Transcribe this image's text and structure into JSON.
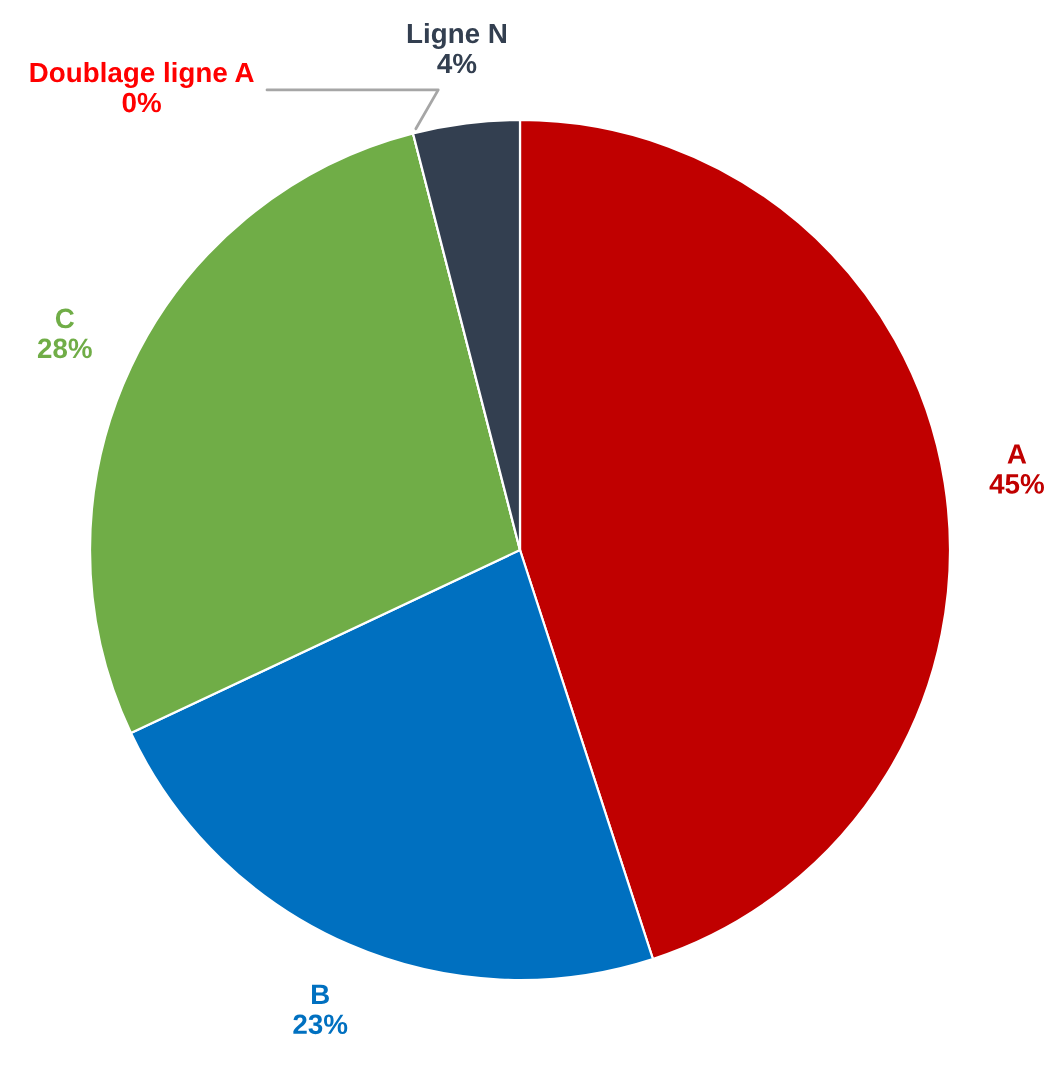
{
  "chart_data": {
    "type": "pie",
    "categories": [
      "A",
      "B",
      "C",
      "Doublage ligne A",
      "Ligne N"
    ],
    "values": [
      45,
      23,
      28,
      0,
      4
    ],
    "value_labels": [
      "45%",
      "23%",
      "28%",
      "0%",
      "4%"
    ],
    "colors": [
      "#c00000",
      "#0070c0",
      "#70ad47",
      "#ff0000",
      "#333f50"
    ]
  }
}
